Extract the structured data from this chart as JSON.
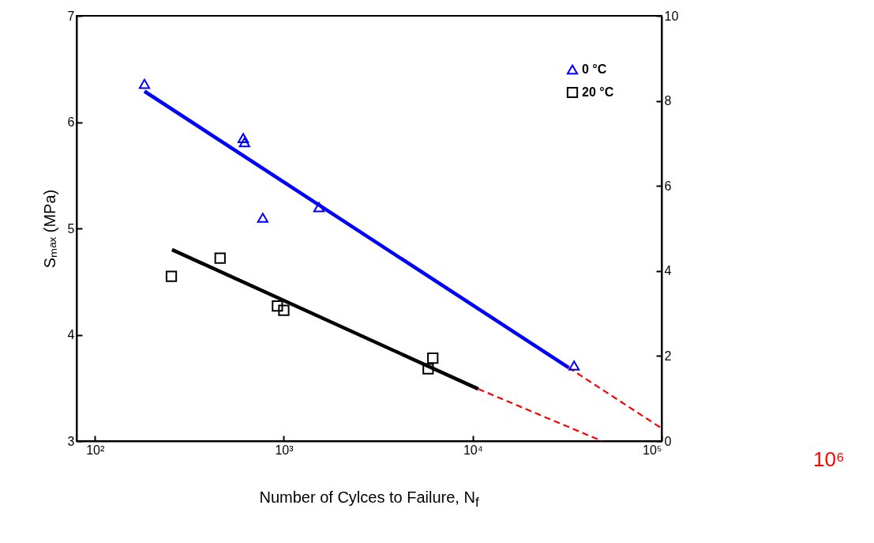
{
  "chart_data": {
    "type": "scatter",
    "xlabel": "Number of Cylces to Failure, N$_{f}$",
    "ylabel": "Sₘₐₓ (MPa)",
    "log": "x",
    "grid": false,
    "legend": "top right",
    "xlim": [
      80,
      100000
    ],
    "xticks": [
      {
        "value": 100,
        "label": "10²"
      },
      {
        "value": 1000,
        "label": "10³"
      },
      {
        "value": 10000,
        "label": "10⁴"
      },
      {
        "value": 100000,
        "label": "10⁵"
      }
    ],
    "ylim": [
      3,
      7
    ],
    "yticks": [
      3,
      4,
      5,
      6,
      7
    ],
    "y2lim": [
      0,
      10
    ],
    "y2ticks": [
      0,
      2,
      4,
      6,
      8,
      10
    ],
    "series": [
      {
        "name": "0 °C",
        "marker": "triangle",
        "color": "#0000ff",
        "x": [
          183,
          610,
          620,
          774,
          1535,
          34400
        ],
        "values": [
          6.36,
          5.85,
          5.81,
          5.1,
          5.2,
          3.71
        ]
      },
      {
        "name": "20 °C",
        "marker": "square",
        "color": "#000000",
        "x": [
          254,
          460,
          925,
          1000,
          6150,
          5810
        ],
        "values": [
          4.55,
          4.72,
          4.27,
          4.23,
          3.78,
          3.68
        ]
      },
      {
        "type": "line",
        "line_style": "solid",
        "color": "#0000ff",
        "x": [
          183,
          32200
        ],
        "values": [
          6.29,
          3.69
        ]
      },
      {
        "type": "line",
        "line_style": "solid",
        "color": "#000000",
        "x": [
          256,
          10700
        ],
        "values": [
          4.8,
          3.49
        ]
      },
      {
        "type": "line",
        "line_style": "dashed",
        "color": "#ff0000",
        "x": [
          32200,
          100000
        ],
        "values": [
          3.69,
          3.12
        ]
      },
      {
        "type": "line",
        "line_style": "dashed",
        "color": "#ff0000",
        "x": [
          10700,
          48300
        ],
        "values": [
          3.49,
          3
        ]
      }
    ],
    "annotations": [
      "10⁶"
    ]
  }
}
